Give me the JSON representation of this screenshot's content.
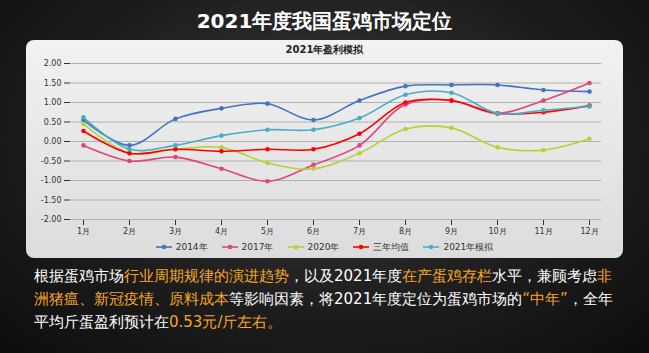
{
  "page_title": "2021年度我国蛋鸡市场定位",
  "chart_data": {
    "type": "line",
    "title": "2021年盈利模拟",
    "categories": [
      "1月",
      "2月",
      "3月",
      "4月",
      "5月",
      "6月",
      "7月",
      "8月",
      "9月",
      "10月",
      "11月",
      "12月"
    ],
    "series": [
      {
        "name": "2014年",
        "color": "#4472c4",
        "values": [
          0.55,
          -0.1,
          0.58,
          0.85,
          0.97,
          0.55,
          1.05,
          1.42,
          1.45,
          1.45,
          1.32,
          1.28
        ]
      },
      {
        "name": "2017年",
        "color": "#e0457b",
        "values": [
          -0.1,
          -0.5,
          -0.4,
          -0.7,
          -1.02,
          -0.6,
          -0.1,
          0.95,
          1.05,
          0.72,
          1.05,
          1.5
        ]
      },
      {
        "name": "2020年",
        "color": "#b5d334",
        "values": [
          0.45,
          -0.3,
          -0.2,
          -0.15,
          -0.55,
          -0.7,
          -0.3,
          0.32,
          0.35,
          -0.15,
          -0.22,
          0.07
        ]
      },
      {
        "name": "三年均值",
        "color": "#ff0000",
        "values": [
          0.27,
          -0.3,
          -0.2,
          -0.25,
          -0.2,
          -0.2,
          0.2,
          1.0,
          1.05,
          0.72,
          0.75,
          0.92
        ]
      },
      {
        "name": "2021年模拟",
        "color": "#4bacc6",
        "values": [
          0.62,
          -0.2,
          -0.1,
          0.15,
          0.3,
          0.3,
          0.6,
          1.2,
          1.25,
          0.72,
          0.8,
          0.9
        ]
      }
    ],
    "ylim": [
      -2,
      2
    ],
    "yticks": [
      {
        "value": 2,
        "label": "2.00"
      },
      {
        "value": 1.5,
        "label": "1.50"
      },
      {
        "value": 1,
        "label": "1.00"
      },
      {
        "value": 0.5,
        "label": "0.50"
      },
      {
        "value": 0,
        "label": "0.00"
      },
      {
        "value": -0.5,
        "label": "-0.50"
      },
      {
        "value": -1,
        "label": "-1.00"
      },
      {
        "value": -1.5,
        "label": "-1.50"
      },
      {
        "value": -2,
        "label": "-2.00"
      }
    ],
    "grid": true,
    "legend": "bottom",
    "marker": "circle"
  },
  "caption": [
    {
      "text": "根据蛋鸡市场",
      "color": "#ffffff"
    },
    {
      "text": "行业周期规律的演进趋势",
      "color": "#f5a623"
    },
    {
      "text": "，以及2021年度",
      "color": "#ffffff"
    },
    {
      "text": "在产蛋鸡存栏",
      "color": "#f5a623"
    },
    {
      "text": "水平，兼顾考虑",
      "color": "#ffffff"
    },
    {
      "text": "非洲猪瘟、新冠疫情、原料成本",
      "color": "#f5a623"
    },
    {
      "text": "等影响因素，将2021年度定位为蛋鸡市场的",
      "color": "#ffffff"
    },
    {
      "text": "“中年”",
      "color": "#f5a623"
    },
    {
      "text": "，全年平均斤蛋盈利预计在",
      "color": "#ffffff"
    },
    {
      "text": "0.53元/斤左右。",
      "color": "#f5a623"
    }
  ]
}
